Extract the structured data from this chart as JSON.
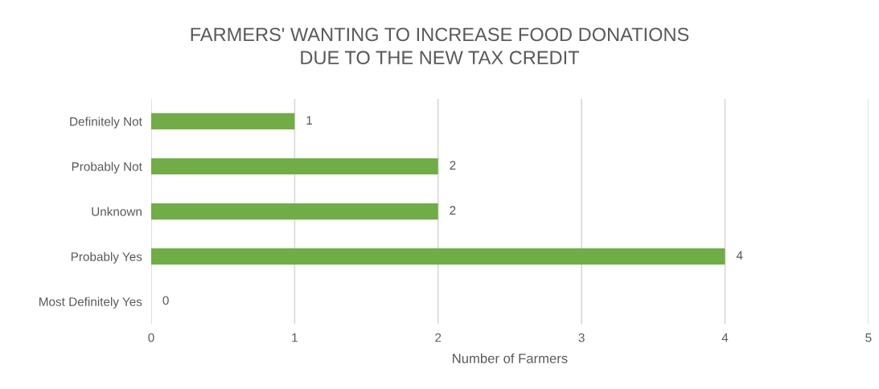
{
  "chart_data": {
    "type": "bar",
    "orientation": "horizontal",
    "title": "FARMERS' WANTING TO INCREASE FOOD DONATIONS\nDUE TO THE NEW TAX CREDIT",
    "xlabel": "Number of Farmers",
    "categories": [
      "Definitely Not",
      "Probably Not",
      "Unknown",
      "Probably Yes",
      "Most Definitely Yes"
    ],
    "values": [
      1,
      2,
      2,
      4,
      0
    ],
    "color": "#70ad47",
    "xlim": [
      0,
      5
    ],
    "xticks": [
      0,
      1,
      2,
      3,
      4,
      5
    ],
    "grid": "x",
    "data_labels": true,
    "legend": false
  }
}
